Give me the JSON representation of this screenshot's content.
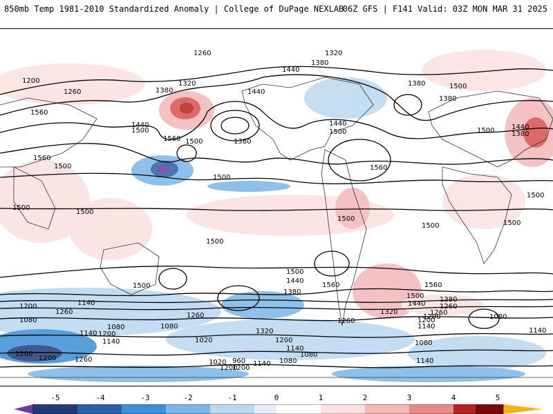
{
  "header": {
    "left": "850mb Temp 1981-2010 Standardized Anomaly | College of DuPage NEXLAB",
    "right": "06Z GFS | F141 Valid: 03Z MON MAR 31 2025"
  },
  "colorbar": {
    "ticks": [
      "-5",
      "-4",
      "-3",
      "-2",
      "-1",
      "0",
      "1",
      "2",
      "3",
      "4",
      "5"
    ],
    "colors": [
      "#6a3d9a",
      "#223a78",
      "#2b5fa8",
      "#3d8fd6",
      "#7cb6e6",
      "#bcd8f0",
      "#e6eff8",
      "#ffffff",
      "#fbe0e0",
      "#f3b8b8",
      "#e98a8a",
      "#d95050",
      "#b52020",
      "#7a0a0a",
      "#f2b21a"
    ]
  },
  "contour_labels": [
    "1260",
    "1320",
    "1200",
    "1260",
    "1440",
    "1380",
    "1380",
    "1440",
    "1380",
    "1500",
    "1440",
    "1500",
    "1560",
    "1380",
    "1320",
    "1560",
    "1500",
    "1380",
    "1560",
    "1500",
    "1560",
    "1500",
    "1500",
    "1500",
    "1500",
    "1500",
    "1500",
    "1500",
    "1440",
    "1380",
    "1560",
    "1560",
    "1500",
    "1440",
    "1380",
    "1260",
    "1200",
    "1080",
    "1140",
    "1080",
    "1140",
    "1200",
    "1080",
    "1260",
    "1020",
    "1200",
    "1140",
    "1260",
    "1080",
    "1140",
    "1020",
    "960",
    "1140",
    "1080",
    "1200",
    "1200",
    "1080",
    "1140",
    "1140",
    "1320",
    "1200",
    "1440",
    "1380",
    "1260",
    "1140",
    "1080",
    "1320",
    "1200",
    "1260",
    "1200",
    "1200",
    "1260",
    "1500",
    "1500",
    "1500",
    "1500",
    "1500",
    "1440"
  ]
}
